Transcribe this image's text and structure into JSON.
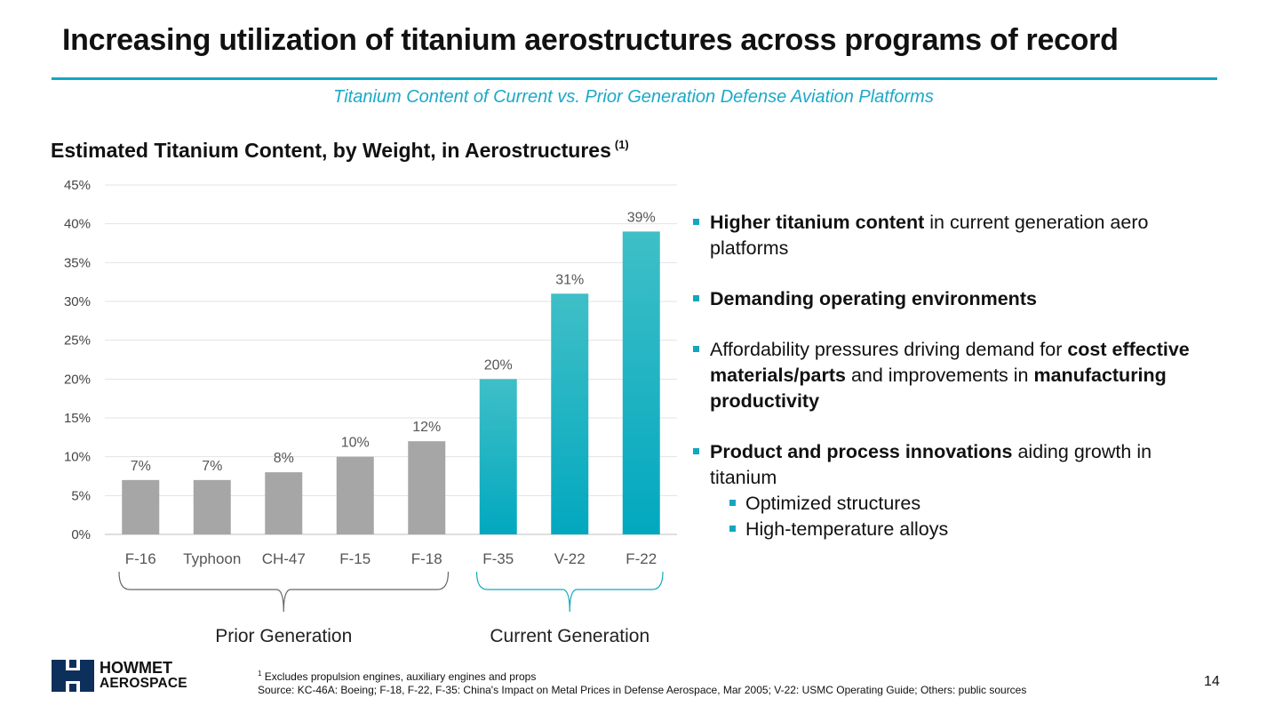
{
  "slide": {
    "title": "Increasing utilization of titanium aerostructures across programs of record",
    "subtitle": "Titanium Content of Current vs. Prior Generation Defense Aviation Platforms",
    "chart_heading": "Estimated Titanium Content, by Weight, in Aerostructures",
    "chart_heading_note": "(1)",
    "page_number": "14"
  },
  "chart_data": {
    "type": "bar",
    "title": "Estimated Titanium Content, by Weight, in Aerostructures",
    "categories": [
      "F-16",
      "Typhoon",
      "CH-47",
      "F-15",
      "F-18",
      "F-35",
      "V-22",
      "F-22"
    ],
    "values": [
      7,
      7,
      8,
      10,
      12,
      20,
      31,
      39
    ],
    "value_labels": [
      "7%",
      "7%",
      "8%",
      "10%",
      "12%",
      "20%",
      "31%",
      "39%"
    ],
    "ylim": [
      0,
      45
    ],
    "yticks": [
      "0%",
      "5%",
      "10%",
      "15%",
      "20%",
      "25%",
      "30%",
      "35%",
      "40%",
      "45%"
    ],
    "ytick_values": [
      0,
      5,
      10,
      15,
      20,
      25,
      30,
      35,
      40,
      45
    ],
    "grid": true,
    "groups": [
      {
        "label": "Prior Generation",
        "categories": [
          "F-16",
          "Typhoon",
          "CH-47",
          "F-15",
          "F-18"
        ],
        "color": "#a6a6a6"
      },
      {
        "label": "Current Generation",
        "categories": [
          "F-35",
          "V-22",
          "F-22"
        ],
        "color": "#13b3c4"
      }
    ]
  },
  "bullets": [
    {
      "parts": [
        {
          "text": "Higher titanium content",
          "bold": true
        },
        {
          "text": " in current generation aero platforms",
          "bold": false
        }
      ]
    },
    {
      "parts": [
        {
          "text": "Demanding operating environments",
          "bold": true
        }
      ]
    },
    {
      "parts": [
        {
          "text": "Affordability pressures driving demand for ",
          "bold": false
        },
        {
          "text": "cost effective materials/parts",
          "bold": true
        },
        {
          "text": " and improvements in ",
          "bold": false
        },
        {
          "text": "manufacturing productivity",
          "bold": true
        }
      ]
    },
    {
      "parts": [
        {
          "text": "Product and process innovations",
          "bold": true
        },
        {
          "text": " aiding growth in titanium",
          "bold": false
        }
      ],
      "sub": [
        "Optimized structures",
        "High-temperature alloys"
      ]
    }
  ],
  "logo": {
    "line1": "HOWMET",
    "line2": "AEROSPACE"
  },
  "footnote": {
    "marker": "1",
    "line1": "Excludes propulsion engines, auxiliary engines and props",
    "line2": "Source: KC-46A: Boeing; F-18, F-22, F-35: China's Impact on Metal Prices in Defense Aerospace, Mar 2005; V-22: USMC Operating Guide; Others: public sources"
  },
  "colors": {
    "accent": "#13a7bf",
    "prior_bar": "#a6a6a6",
    "current_bar": "#13b3c4"
  }
}
